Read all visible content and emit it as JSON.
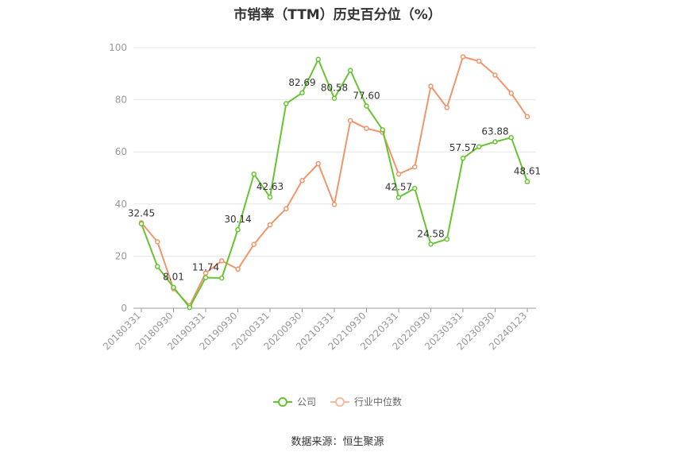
{
  "chart_data": {
    "type": "line",
    "title": "市销率（TTM）历史百分位（%）",
    "source": "数据来源：恒生聚源",
    "xlabel": "",
    "ylabel": "",
    "ylim": [
      0,
      100
    ],
    "yticks": [
      0,
      20,
      40,
      60,
      80,
      100
    ],
    "grid": true,
    "legend_position": "bottom",
    "xtick_labels": [
      "20180331",
      "20180930",
      "20190331",
      "20190930",
      "20200331",
      "20200930",
      "20210331",
      "20210930",
      "20220331",
      "20220930",
      "20230331",
      "20230930",
      "20240123"
    ],
    "series": [
      {
        "name": "公司",
        "color": "#66c431",
        "values": [
          32.45,
          16.0,
          8.01,
          0.3,
          11.74,
          11.6,
          30.14,
          51.5,
          42.63,
          78.5,
          82.69,
          95.5,
          80.58,
          91.3,
          77.6,
          68.5,
          42.57,
          46.0,
          24.58,
          26.5,
          57.57,
          62.0,
          63.88,
          65.5,
          48.61
        ],
        "labels": [
          "32.45",
          "",
          "8.01",
          "",
          "11.74",
          "",
          "30.14",
          "",
          "42.63",
          "",
          "82.69",
          "",
          "80.58",
          "",
          "77.60",
          "",
          "42.57",
          "",
          "24.58",
          "",
          "57.57",
          "",
          "63.88",
          "",
          "48.61"
        ]
      },
      {
        "name": "行业中位数",
        "color": "#f0956a",
        "values": [
          32.8,
          25.5,
          7.5,
          1.0,
          13.5,
          18.2,
          15.0,
          24.5,
          32.0,
          38.2,
          49.0,
          55.5,
          39.8,
          72.0,
          69.0,
          67.5,
          51.5,
          54.2,
          85.2,
          77.0,
          96.5,
          94.8,
          89.5,
          82.5,
          73.5
        ]
      }
    ]
  }
}
